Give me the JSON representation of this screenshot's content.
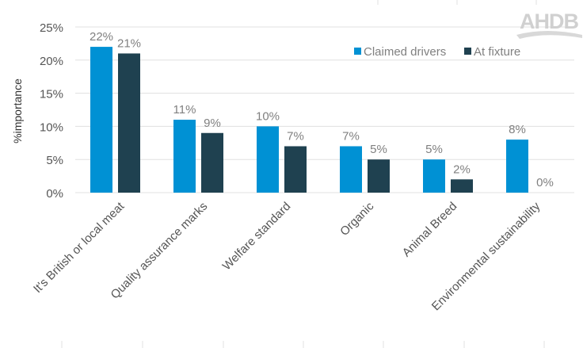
{
  "chart_data": {
    "type": "bar",
    "title": "",
    "xlabel": "",
    "ylabel": "%importance",
    "ylim": [
      0,
      25
    ],
    "yticks": [
      "0%",
      "5%",
      "10%",
      "15%",
      "20%",
      "25%"
    ],
    "grid": true,
    "legend_position": "top-right",
    "categories": [
      "It's British or local meat",
      "Quality assurance marks",
      "Welfare standard",
      "Organic",
      "Animal Breed",
      "Environmental sustainability"
    ],
    "series": [
      {
        "name": "Claimed drivers",
        "color": "#0091D4",
        "values": [
          22,
          11,
          10,
          7,
          5,
          8
        ],
        "labels": [
          "22%",
          "11%",
          "10%",
          "7%",
          "5%",
          "8%"
        ]
      },
      {
        "name": "At fixture",
        "color": "#1F4150",
        "values": [
          21,
          9,
          7,
          5,
          2,
          0
        ],
        "labels": [
          "21%",
          "9%",
          "7%",
          "5%",
          "2%",
          "0%"
        ]
      }
    ]
  },
  "logo": {
    "text": "AHDB",
    "color": "#C8C8C8"
  }
}
